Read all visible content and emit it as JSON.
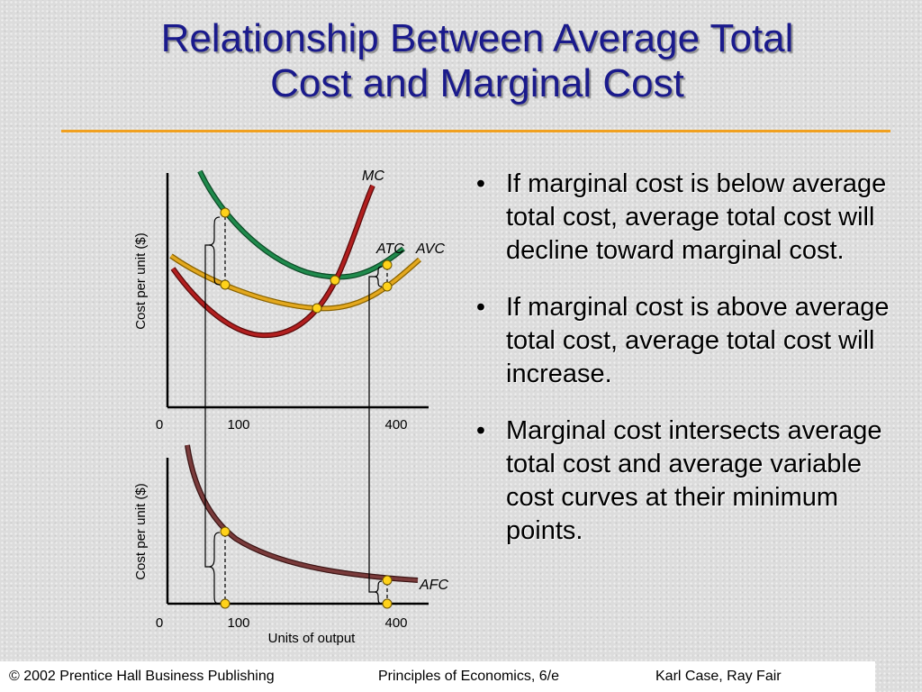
{
  "slide": {
    "title_line1": "Relationship Between Average Total",
    "title_line2": "Cost and Marginal Cost"
  },
  "bullets": [
    "If marginal cost is below average total cost, average total cost will decline toward marginal cost.",
    "If marginal cost is above average total cost, average total cost will increase.",
    "Marginal cost intersects average total cost and average variable cost curves at their minimum points."
  ],
  "bullet_symbol": "•",
  "diagram": {
    "top_panel": {
      "ylabel": "Cost per unit ($)",
      "x_ticks": [
        "0",
        "100",
        "400"
      ],
      "curve_labels": {
        "mc": "MC",
        "atc": "ATC",
        "avc": "AVC"
      }
    },
    "bottom_panel": {
      "ylabel": "Cost per unit ($)",
      "x_ticks": [
        "0",
        "100",
        "400"
      ],
      "xlabel": "Units of output",
      "curve_labels": {
        "afc": "AFC"
      }
    },
    "colors": {
      "mc": "#b21f1f",
      "atc": "#1f8a4c",
      "avc": "#e3a81e",
      "afc": "#7a3b3b",
      "point": "#ffd21a"
    }
  },
  "footer": {
    "left": "© 2002 Prentice Hall Business Publishing",
    "center": "Principles of Economics, 6/e",
    "right": "Karl Case, Ray Fair"
  }
}
